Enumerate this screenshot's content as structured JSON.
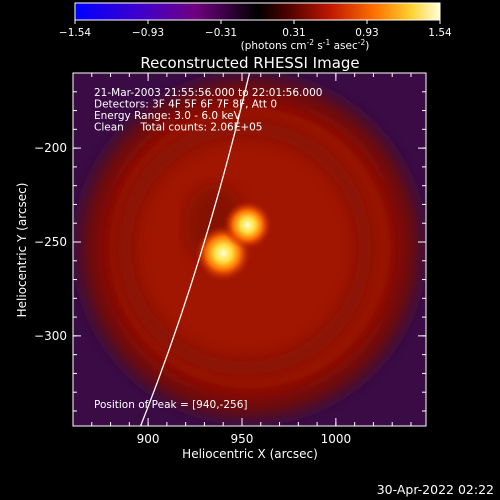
{
  "colorbar": {
    "ticks": [
      "-1.54",
      "-0.93",
      "-0.31",
      "0.31",
      "0.93",
      "1.54"
    ],
    "units_main": "(photons cm",
    "units_sup1": "-2",
    "units_mid": " s",
    "units_sup2": "-1",
    "units_mid2": " asec",
    "units_sup3": "-2",
    "units_end": ")"
  },
  "chart_data": {
    "type": "heatmap",
    "title": "Reconstructed RHESSI Image",
    "xlabel": "Heliocentric X (arcsec)",
    "ylabel": "Heliocentric Y (arcsec)",
    "xlim": [
      860,
      1048
    ],
    "ylim": [
      -348,
      -160
    ],
    "x_ticks": [
      {
        "value": 900,
        "label": "900"
      },
      {
        "value": 950,
        "label": "950"
      },
      {
        "value": 1000,
        "label": "1000"
      }
    ],
    "y_ticks": [
      {
        "value": -200,
        "label": "−200"
      },
      {
        "value": -250,
        "label": "−250"
      },
      {
        "value": -300,
        "label": "−300"
      }
    ],
    "color_range": [
      -1.54,
      1.54
    ],
    "sources": [
      {
        "x": 940,
        "y": -256,
        "peak": 1.54
      },
      {
        "x": 953,
        "y": -241,
        "peak": 1.3
      }
    ],
    "annotations": [
      "21-Mar-2003 21:55:56.000 to 22:01:56.000",
      "Detectors: 3F 4F 5F 6F 7F 8F, Att 0",
      "Energy Range: 3.0 - 6.0 keV",
      "Clean     Total counts: 2.06E+05"
    ],
    "peak_label": "Position of Peak = [940,-256]"
  },
  "footer": {
    "timestamp": "30-Apr-2022 02:22"
  }
}
